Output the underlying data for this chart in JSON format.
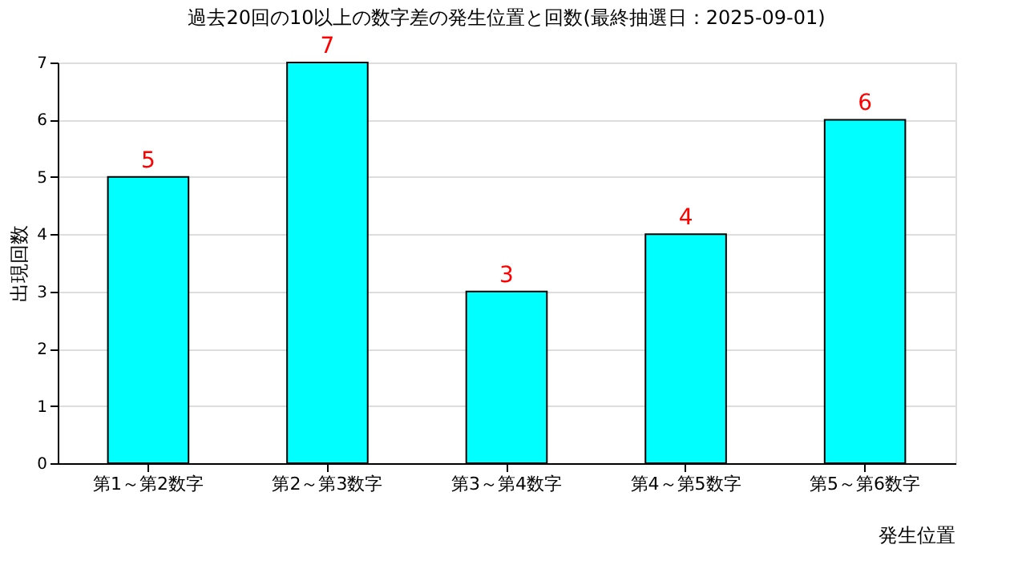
{
  "chart_data": {
    "type": "bar",
    "title": "過去20回の10以上の数字差の発生位置と回数(最終抽選日：2025-09-01)",
    "categories": [
      "第1～第2数字",
      "第2～第3数字",
      "第3～第4数字",
      "第4～第5数字",
      "第5～第6数字"
    ],
    "values": [
      5,
      7,
      3,
      4,
      6
    ],
    "color": "#00ffff",
    "xlabel": "発生位置",
    "ylabel": "出現回数",
    "ylim": [
      0,
      7
    ],
    "yticks": [
      0,
      1,
      2,
      3,
      4,
      5,
      6,
      7
    ],
    "grid": "y",
    "data_labels": true
  }
}
